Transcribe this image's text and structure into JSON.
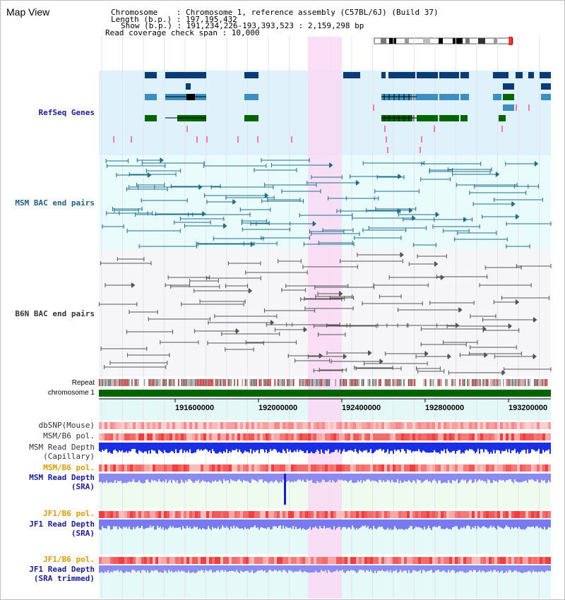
{
  "view_title": "Map View",
  "header": {
    "line1": "Chromosome    : Chromosome 1, reference assembly (C57BL/6J) (Build 37)",
    "line2": "Length (b.p.) : 197,195,432",
    "line3": "Show (b.p.) : 191,234,226-193,393,523 : 2,159,298 bp",
    "line4": "Read coverage check span : 10,000"
  },
  "tracks": {
    "refseq": "RefSeq Genes",
    "msm_bac": "MSM BAC end pairs",
    "b6n_bac": "B6N BAC end pairs",
    "repeat": "Repeat",
    "chromosome": "chromosome 1",
    "dbsnp": "dbSNP(Mouse)",
    "msm_b6_pol": "MSM/B6 pol.",
    "msm_depth_cap_1": "MSM Read Depth",
    "msm_depth_cap_2": "(Capillary)",
    "msm_b6_pol_sra": "MSM/B6 pol.",
    "msm_depth_sra_1": "MSM Read Depth",
    "msm_depth_sra_2": "(SRA)",
    "jf1_b6_pol": "JF1/B6 pol.",
    "jf1_depth_1": "JF1 Read Depth",
    "jf1_depth_2": "(SRA)",
    "jf1_b6_pol_trim": "JF1/B6 pol.",
    "jf1_depth_trim_1": "JF1 Read Depth",
    "jf1_depth_trim_2": "(SRA trimmed)"
  },
  "ruler_ticks": [
    "191600000",
    "192000000",
    "192400000",
    "192800000",
    "193200000"
  ],
  "colors": {
    "refseq_bg": "#dff2fb",
    "msm_bac_bg": "#e9fbfb",
    "b6n_bac_bg": "#f6f6f9",
    "highlight": "#f9d9f4",
    "label_blue": "#1a1aa6",
    "label_orange": "#e69a00",
    "label_teal": "#1f5f88",
    "chromosome_green": "#006400"
  }
}
